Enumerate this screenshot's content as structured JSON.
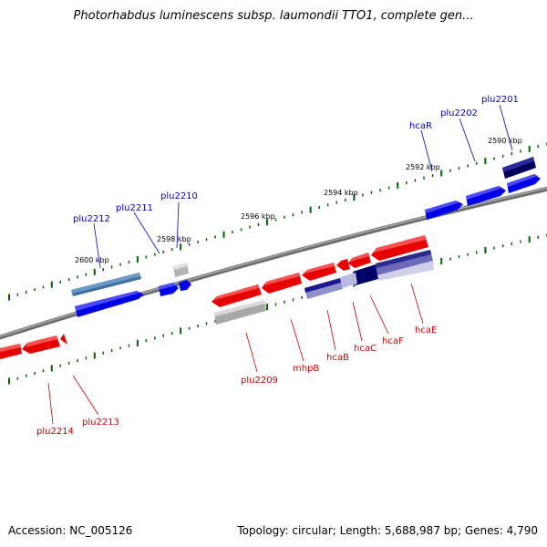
{
  "title": "Photorhabdus luminescens subsp. laumondii TTO1, complete gen...",
  "footer": {
    "accession": "Accession: NC_005126",
    "topology": "Topology: circular; Length: 5,688,987 bp; Genes: 4,790"
  },
  "colors": {
    "forward_gene": "#0000ff",
    "reverse_gene": "#ff0000",
    "forward_operon": "#000080",
    "steelblue_gene": "#4682b4",
    "pseudo_gene": "#b4b4b4",
    "backbone": "#808080",
    "tick": "#006400"
  },
  "ruler_labels": [
    "2600 kbp",
    "2598 kbp",
    "2596 kbp",
    "2594 kbp",
    "2592 kbp",
    "2590 kbp"
  ],
  "genes": {
    "forward": [
      "plu2212",
      "plu2211",
      "plu2210",
      "hcaR",
      "plu2202",
      "plu2201"
    ],
    "reverse": [
      "plu2214",
      "plu2213",
      "plu2209",
      "mhpB",
      "hcaB",
      "hcaC",
      "hcaF",
      "hcaE"
    ]
  }
}
